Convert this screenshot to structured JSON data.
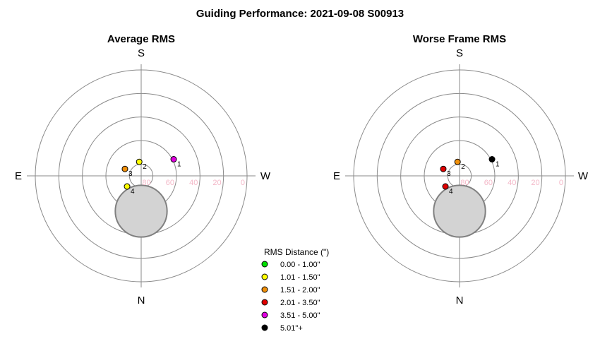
{
  "page_title": "Guiding Performance: 2021-09-08 S00913",
  "chart_data": [
    {
      "type": "scatter",
      "projection": "polar-altaz",
      "title": "Average RMS",
      "compass": {
        "top": "S",
        "bottom": "N",
        "left": "E",
        "right": "W"
      },
      "radial_axis": "altitude",
      "ring_altitudes": [
        0,
        20,
        40,
        60,
        80
      ],
      "ring_tick_labels": [
        "0",
        "20",
        "40",
        "60",
        "80"
      ],
      "exclusion_zone": {
        "center_altitude": 60,
        "center_side": "N",
        "angular_radius_deg": 22
      },
      "points": [
        {
          "label": "1",
          "altitude": 59,
          "azimuth": 243,
          "color": "#e000e0"
        },
        {
          "label": "2",
          "altitude": 78,
          "azimuth": 172,
          "color": "#ffff00"
        },
        {
          "label": "3",
          "altitude": 75,
          "azimuth": 113,
          "color": "#f0900a"
        },
        {
          "label": "4",
          "altitude": 75,
          "azimuth": 53,
          "color": "#ffff00"
        }
      ]
    },
    {
      "type": "scatter",
      "projection": "polar-altaz",
      "title": "Worse Frame RMS",
      "compass": {
        "top": "S",
        "bottom": "N",
        "left": "E",
        "right": "W"
      },
      "radial_axis": "altitude",
      "ring_altitudes": [
        0,
        20,
        40,
        60,
        80
      ],
      "ring_tick_labels": [
        "0",
        "20",
        "40",
        "60",
        "80"
      ],
      "exclusion_zone": {
        "center_altitude": 60,
        "center_side": "N",
        "angular_radius_deg": 22
      },
      "points": [
        {
          "label": "1",
          "altitude": 59,
          "azimuth": 243,
          "color": "#000000"
        },
        {
          "label": "2",
          "altitude": 78,
          "azimuth": 172,
          "color": "#f0900a"
        },
        {
          "label": "3",
          "altitude": 75,
          "azimuth": 113,
          "color": "#e00000"
        },
        {
          "label": "4",
          "altitude": 75,
          "azimuth": 53,
          "color": "#e00000"
        }
      ]
    }
  ],
  "legend": {
    "title": "RMS Distance (\")",
    "items": [
      {
        "label": "0.00 - 1.00\"",
        "color": "#00e000"
      },
      {
        "label": "1.01 - 1.50\"",
        "color": "#ffff00"
      },
      {
        "label": "1.51 - 2.00\"",
        "color": "#f0900a"
      },
      {
        "label": "2.01 - 3.50\"",
        "color": "#e00000"
      },
      {
        "label": "3.51 - 5.00\"",
        "color": "#e000e0"
      },
      {
        "label": "5.01\"+",
        "color": "#000000"
      }
    ]
  }
}
